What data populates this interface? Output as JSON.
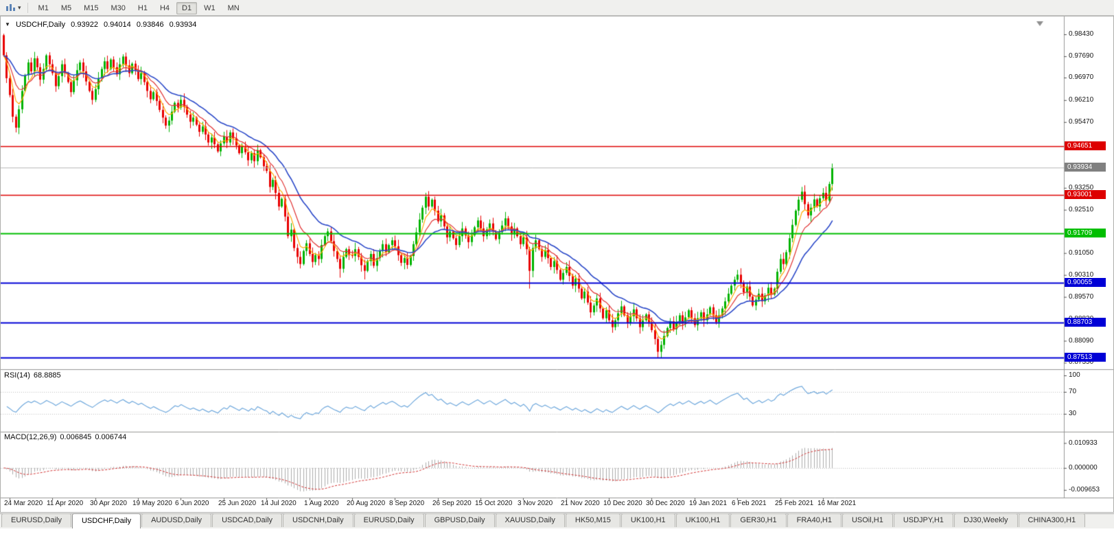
{
  "toolbar": {
    "timeframes": [
      "M1",
      "M5",
      "M15",
      "M30",
      "H1",
      "H4",
      "D1",
      "W1",
      "MN"
    ],
    "active": "D1"
  },
  "chart": {
    "title": "USDCHF,Daily",
    "open": "0.93922",
    "high": "0.94014",
    "low": "0.93846",
    "close": "0.93934",
    "axis_ticks": [
      "0.98430",
      "0.97690",
      "0.96970",
      "0.96210",
      "0.95470",
      "0.93250",
      "0.92510",
      "0.91050",
      "0.90310",
      "0.89570",
      "0.88830",
      "0.88090",
      "0.87350"
    ],
    "current_price": "0.93934",
    "current_price_color": "#808080",
    "hlines": [
      {
        "price": "0.94651",
        "color": "#DD0000",
        "width": 1.3
      },
      {
        "price": "0.93001",
        "color": "#DD0000",
        "width": 1.3
      },
      {
        "price": "0.91709",
        "color": "#00BE00",
        "width": 2
      },
      {
        "price": "0.90055",
        "color": "#0000D6",
        "width": 2
      },
      {
        "price": "0.88703",
        "color": "#0000D6",
        "width": 2
      },
      {
        "price": "0.87513",
        "color": "#0000D6",
        "width": 2
      }
    ]
  },
  "rsi": {
    "name": "RSI(14)",
    "value": "68.8885",
    "axis": [
      "100",
      "70",
      "30"
    ],
    "levels": [
      70,
      30
    ],
    "color": "#6FA8DC"
  },
  "macd": {
    "name": "MACD(12,26,9)",
    "main": "0.006845",
    "signal": "0.006744",
    "axis_top": "0.010933",
    "axis_zero": "0.000000",
    "axis_bottom": "-0.009653",
    "bar_color": "#ABABAB",
    "signal_color": "#D03030"
  },
  "tabs": [
    "EURUSD,Daily",
    "USDCHF,Daily",
    "AUDUSD,Daily",
    "USDCAD,Daily",
    "USDCNH,Daily",
    "EURUSD,Daily",
    "GBPUSD,Daily",
    "XAUUSD,Daily",
    "HK50,M15",
    "UK100,H1",
    "UK100,H1",
    "GER30,H1",
    "FRA40,H1",
    "USOil,H1",
    "USDJPY,H1",
    "DJ30,Weekly",
    "CHINA300,H1"
  ],
  "active_tab": 1,
  "chart_data": {
    "type": "candlestick",
    "symbol": "USDCHF",
    "timeframe": "Daily",
    "quote": {
      "open": 0.93922,
      "high": 0.94014,
      "low": 0.93846,
      "close": 0.93934
    },
    "y_range": [
      0.8713,
      0.9887
    ],
    "x_labels": [
      "24 Mar 2020",
      "11 Apr 2020",
      "30 Apr 2020",
      "19 May 2020",
      "6 Jun 2020",
      "25 Jun 2020",
      "14 Jul 2020",
      "1 Aug 2020",
      "20 Aug 2020",
      "8 Sep 2020",
      "26 Sep 2020",
      "15 Oct 2020",
      "3 Nov 2020",
      "21 Nov 2020",
      "10 Dec 2020",
      "30 Dec 2020",
      "19 Jan 2021",
      "6 Feb 2021",
      "25 Feb 2021",
      "16 Mar 2021"
    ],
    "x_label_first_index": 2,
    "x_label_step": 14,
    "first_open": 0.984,
    "closes": [
      0.9772,
      0.9695,
      0.9638,
      0.9565,
      0.9528,
      0.959,
      0.9652,
      0.9705,
      0.9748,
      0.9718,
      0.9762,
      0.9732,
      0.969,
      0.9726,
      0.9772,
      0.9742,
      0.9712,
      0.9668,
      0.9702,
      0.9742,
      0.9712,
      0.9682,
      0.9648,
      0.9688,
      0.9722,
      0.9748,
      0.9718,
      0.9684,
      0.9652,
      0.9622,
      0.9658,
      0.9694,
      0.9726,
      0.9752,
      0.9726,
      0.9758,
      0.9732,
      0.9708,
      0.9742,
      0.9768,
      0.9738,
      0.9712,
      0.9744,
      0.9722,
      0.9692,
      0.9712,
      0.9682,
      0.9652,
      0.9624,
      0.9648,
      0.9618,
      0.9588,
      0.9562,
      0.9535,
      0.9552,
      0.9582,
      0.9612,
      0.9596,
      0.9622,
      0.9598,
      0.9572,
      0.9548,
      0.9562,
      0.9538,
      0.9514,
      0.9532,
      0.9505,
      0.9478,
      0.9495,
      0.9472,
      0.9448,
      0.9475,
      0.9498,
      0.9478,
      0.9512,
      0.9492,
      0.9468,
      0.9442,
      0.9465,
      0.9445,
      0.9418,
      0.9442,
      0.9415,
      0.9452,
      0.9428,
      0.9398,
      0.9382,
      0.9328,
      0.9352,
      0.9308,
      0.9262,
      0.9288,
      0.9228,
      0.9162,
      0.9184,
      0.9122,
      0.9092,
      0.9068,
      0.9112,
      0.9138,
      0.9102,
      0.9075,
      0.9098,
      0.9085,
      0.9132,
      0.9162,
      0.9178,
      0.9145,
      0.9112,
      0.9085,
      0.9052,
      0.9092,
      0.9118,
      0.9098,
      0.9095,
      0.9118,
      0.9092,
      0.9064,
      0.9045,
      0.9078,
      0.9102,
      0.9062,
      0.9088,
      0.9112,
      0.9135,
      0.9108,
      0.9132,
      0.9148,
      0.9128,
      0.9098,
      0.9072,
      0.9088,
      0.9065,
      0.9095,
      0.9135,
      0.9175,
      0.9218,
      0.9258,
      0.9295,
      0.9262,
      0.9285,
      0.9248,
      0.9212,
      0.9232,
      0.9195,
      0.9158,
      0.9178,
      0.9155,
      0.9132,
      0.9162,
      0.9188,
      0.9164,
      0.9142,
      0.9165,
      0.9192,
      0.9215,
      0.9188,
      0.9162,
      0.9185,
      0.9205,
      0.9178,
      0.9152,
      0.9175,
      0.9198,
      0.9222,
      0.9195,
      0.9168,
      0.9188,
      0.9162,
      0.9135,
      0.9158,
      0.9118,
      0.9045,
      0.9122,
      0.9148,
      0.9118,
      0.9092,
      0.9115,
      0.9088,
      0.9058,
      0.9078,
      0.9048,
      0.9015,
      0.9038,
      0.9058,
      0.9028,
      0.8995,
      0.9018,
      0.8985,
      0.8952,
      0.8975,
      0.8938,
      0.8905,
      0.8928,
      0.8952,
      0.8918,
      0.8885,
      0.8912,
      0.8878,
      0.8855,
      0.8878,
      0.8902,
      0.8925,
      0.8895,
      0.8868,
      0.8892,
      0.8915,
      0.8885,
      0.8855,
      0.8878,
      0.8898,
      0.8872,
      0.8845,
      0.8815,
      0.8772,
      0.8795,
      0.8825,
      0.8852,
      0.8875,
      0.8848,
      0.8872,
      0.8895,
      0.8868,
      0.8888,
      0.8912,
      0.8885,
      0.8862,
      0.8885,
      0.8905,
      0.8878,
      0.8898,
      0.8922,
      0.8895,
      0.8872,
      0.8895,
      0.8918,
      0.8942,
      0.8968,
      0.8995,
      0.9015,
      0.9032,
      0.9005,
      0.8972,
      0.8992,
      0.8958,
      0.8928,
      0.8948,
      0.8968,
      0.8942,
      0.8962,
      0.8988,
      0.8965,
      0.8985,
      0.9042,
      0.9085,
      0.9068,
      0.9108,
      0.9155,
      0.92,
      0.9248,
      0.9285,
      0.9312,
      0.927,
      0.9232,
      0.9258,
      0.9286,
      0.9262,
      0.929,
      0.9308,
      0.9282,
      0.9338,
      0.93934
    ],
    "spikes": [
      {
        "i": 0,
        "high": 0.9843
      },
      {
        "i": 4,
        "low": 0.9512
      },
      {
        "i": 97,
        "low": 0.9053
      },
      {
        "i": 110,
        "low": 0.9022
      },
      {
        "i": 118,
        "low": 0.9016
      },
      {
        "i": 172,
        "low": 0.8985
      },
      {
        "i": 214,
        "low": 0.8752
      },
      {
        "i": 271,
        "high": 0.94014
      }
    ],
    "colors": {
      "up": "#00B300",
      "down": "#E80000"
    },
    "overlays": [
      {
        "name": "ma-fast",
        "period": 5,
        "color": "#FFAA00"
      },
      {
        "name": "ma-medium",
        "period": 10,
        "color": "#E03030"
      },
      {
        "name": "ma-slow",
        "period": 22,
        "color": "#2A48C8"
      }
    ],
    "indicators": [
      {
        "name": "RSI",
        "period": 14,
        "last": 68.8885,
        "range": [
          0,
          100
        ],
        "levels": [
          70,
          30
        ]
      },
      {
        "name": "MACD",
        "fast": 12,
        "slow": 26,
        "signal": 9,
        "last_main": 0.006845,
        "last_signal": 0.006744,
        "axis_max": 0.010933,
        "axis_min": -0.009653
      }
    ],
    "levels": [
      0.94651,
      0.93001,
      0.91709,
      0.90055,
      0.88703,
      0.87513
    ]
  }
}
